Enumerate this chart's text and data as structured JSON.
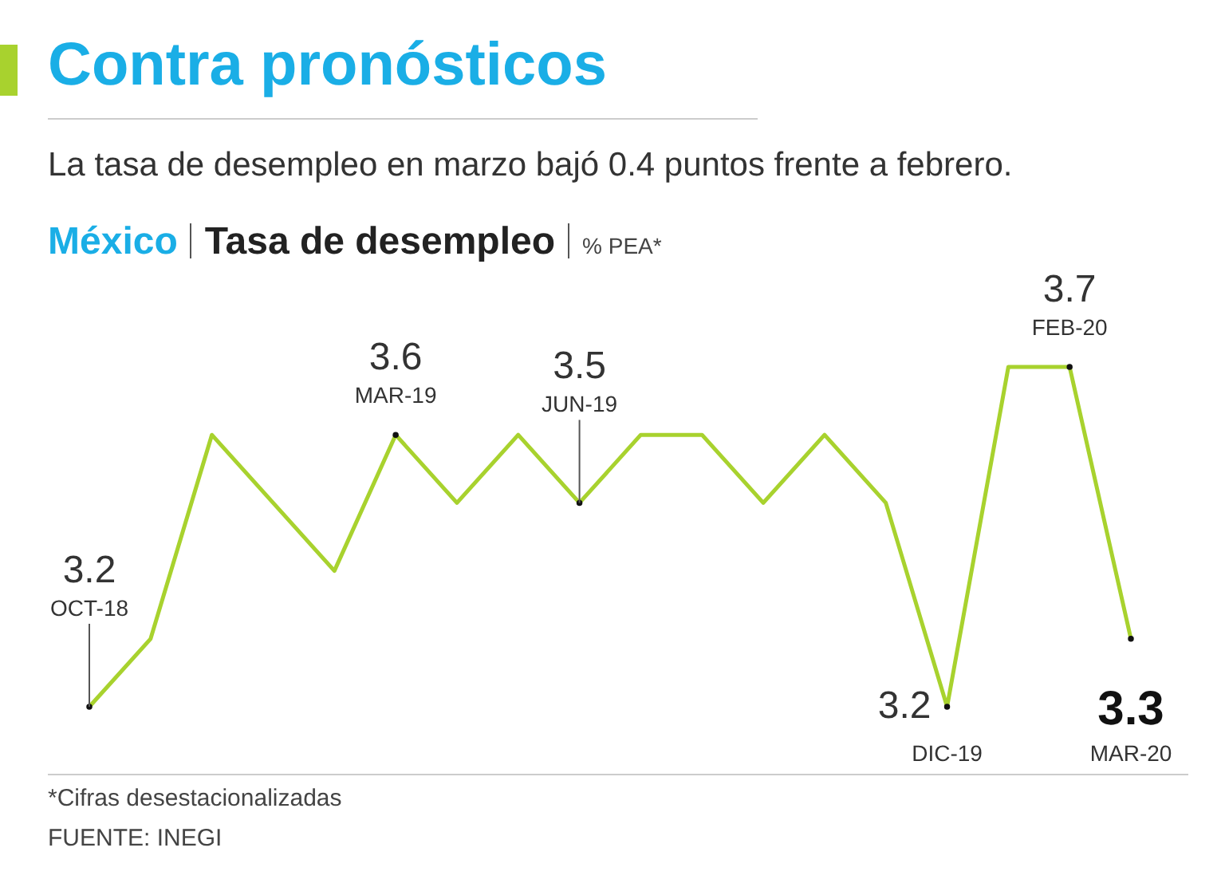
{
  "chart_data": {
    "type": "line",
    "title": "Contra pronósticos",
    "subtitle": "La tasa de desempleo en marzo bajó 0.4 puntos frente a febrero.",
    "ylabel": "% PEA*",
    "annotations": [
      "México",
      "Tasa de desempleo",
      "*Cifras desestacionalizadas",
      "FUENTE: INEGI"
    ],
    "categories": [
      "OCT-18",
      null,
      null,
      null,
      null,
      "MAR-19",
      null,
      null,
      "JUN-19",
      null,
      null,
      null,
      null,
      null,
      "DIC-19",
      null,
      "FEB-20",
      "MAR-20"
    ],
    "series": [
      {
        "color": "#a8d22e",
        "values": [
          3.2,
          3.3,
          3.6,
          3.5,
          3.4,
          3.6,
          3.5,
          3.6,
          3.5,
          3.6,
          3.6,
          3.5,
          3.6,
          3.5,
          3.2,
          3.7,
          3.7,
          3.3
        ],
        "value_labels": [
          "3.2",
          null,
          null,
          null,
          null,
          "3.6",
          null,
          null,
          "3.5",
          null,
          null,
          null,
          null,
          null,
          "3.2",
          null,
          "3.7",
          "3.3"
        ]
      }
    ]
  }
}
